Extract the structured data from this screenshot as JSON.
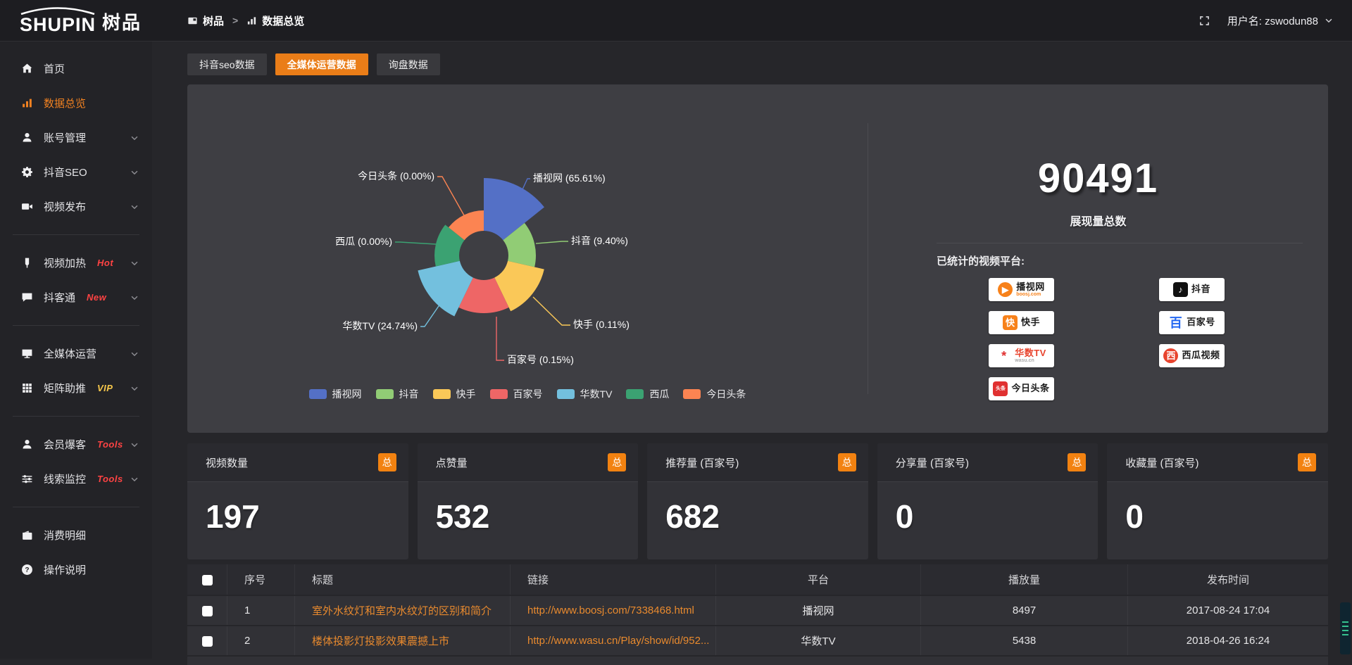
{
  "colors": {
    "accent": "#ea7d18",
    "active_text": "#f08121",
    "link": "#e98a2e",
    "badge_bg": "#f28211",
    "hot_badge": "#ff4343",
    "vip_badge": "#f7c84b",
    "panel_bg": "#3e3e43"
  },
  "topbar": {
    "logo_main": "SHUPIN",
    "logo_sub": "树品",
    "breadcrumb_root": "树品",
    "breadcrumb_sep": ">",
    "breadcrumb_current": "数据总览",
    "username": "用户名: zswodun88"
  },
  "sidebar": {
    "items": [
      {
        "label": "首页",
        "icon": "home"
      },
      {
        "label": "数据总览",
        "icon": "chart",
        "active": true
      },
      {
        "label": "账号管理",
        "icon": "user",
        "chevron": true
      },
      {
        "label": "抖音SEO",
        "icon": "gear",
        "chevron": true
      },
      {
        "label": "视频发布",
        "icon": "video",
        "chevron": true
      },
      {
        "divider": true
      },
      {
        "label": "视频加热",
        "icon": "heat",
        "badge": "Hot",
        "badge_color": "#ff4343",
        "chevron": true
      },
      {
        "label": "抖客通",
        "icon": "chat",
        "badge": "New",
        "badge_color": "#ff4343",
        "chevron": true
      },
      {
        "divider": true
      },
      {
        "label": "全媒体运营",
        "icon": "monitor",
        "chevron": true
      },
      {
        "label": "矩阵助推",
        "icon": "grid",
        "badge": "VIP",
        "badge_color": "#f7c84b",
        "chevron": true
      },
      {
        "divider": true
      },
      {
        "label": "会员爆客",
        "icon": "user",
        "badge": "Tools",
        "badge_color": "#ff4343",
        "chevron": true
      },
      {
        "label": "线索监控",
        "icon": "sliders",
        "badge": "Tools",
        "badge_color": "#ff4343",
        "chevron": true
      },
      {
        "divider": true
      },
      {
        "label": "消费明细",
        "icon": "wallet"
      },
      {
        "label": "操作说明",
        "icon": "help"
      }
    ]
  },
  "tabs": [
    {
      "label": "抖音seo数据"
    },
    {
      "label": "全媒体运营数据",
      "active": true
    },
    {
      "label": "询盘数据"
    }
  ],
  "chart_data": {
    "type": "pie",
    "variant": "nightingale-rose",
    "unit": "%",
    "legend_position": "bottom",
    "label_format": "{name} ({value}%)",
    "items": [
      {
        "name": "播视网",
        "value": 65.61,
        "color": "#5470c6"
      },
      {
        "name": "抖音",
        "value": 9.4,
        "color": "#91cc75"
      },
      {
        "name": "快手",
        "value": 0.11,
        "color": "#fac858"
      },
      {
        "name": "百家号",
        "value": 0.15,
        "color": "#ee6666"
      },
      {
        "name": "华数TV",
        "value": 24.74,
        "color": "#73c0de"
      },
      {
        "name": "西瓜",
        "value": 0.0,
        "color": "#3ba272"
      },
      {
        "name": "今日头条",
        "value": 0.0,
        "color": "#fc8452"
      }
    ]
  },
  "summary": {
    "total_value": "90491",
    "total_caption": "展现量总数",
    "platforms_title": "已统计的视频平台:",
    "platforms_left": [
      {
        "name": "播视网",
        "sub": "boosj.com",
        "icon": "boosj-logo",
        "glyph": "▶",
        "glyph_bg": "#f7811a",
        "glyph_fg": "#ffffff",
        "round": true,
        "sub_color": "#f7811a"
      },
      {
        "name": "快手",
        "icon": "kuaishou-logo",
        "glyph": "快",
        "glyph_bg": "#f7811a",
        "glyph_fg": "#ffffff"
      },
      {
        "name": "华数TV",
        "sub": "wasu.cn",
        "icon": "wasu-logo",
        "glyph": "*",
        "glyph_bg": "#ffffff",
        "glyph_fg": "#e03131",
        "big": true,
        "name_color": "#e8442e",
        "sub_color": "#aaaaaa"
      },
      {
        "name": "今日头条",
        "icon": "toutiao-logo",
        "glyph": "头条",
        "glyph_bg": "#e03131",
        "glyph_fg": "#ffffff",
        "small": true
      }
    ],
    "platforms_right": [
      {
        "name": "抖音",
        "icon": "douyin-logo",
        "glyph": "♪",
        "glyph_bg": "#111111",
        "glyph_fg": "#ffffff"
      },
      {
        "name": "百家号",
        "icon": "baijiahao-logo",
        "glyph": "百",
        "glyph_bg": "#ffffff",
        "glyph_fg": "#2468f2",
        "big": true
      },
      {
        "name": "西瓜视频",
        "icon": "xigua-logo",
        "glyph": "西",
        "glyph_bg": "#e8442e",
        "glyph_fg": "#ffffff",
        "round": true
      }
    ]
  },
  "stat_cards": [
    {
      "title": "视频数量",
      "badge": "总",
      "value": "197"
    },
    {
      "title": "点赞量",
      "badge": "总",
      "value": "532"
    },
    {
      "title": "推荐量 (百家号)",
      "badge": "总",
      "value": "682"
    },
    {
      "title": "分享量 (百家号)",
      "badge": "总",
      "value": "0"
    },
    {
      "title": "收藏量 (百家号)",
      "badge": "总",
      "value": "0"
    }
  ],
  "table": {
    "columns": [
      "序号",
      "标题",
      "链接",
      "平台",
      "播放量",
      "发布时间"
    ],
    "rows": [
      {
        "no": "1",
        "title": "室外水纹灯和室内水纹灯的区别和简介",
        "link": "http://www.boosj.com/7338468.html",
        "platform": "播视网",
        "plays": "8497",
        "time": "2017-08-24 17:04"
      },
      {
        "no": "2",
        "title": "楼体投影灯投影效果震撼上市",
        "link": "http://www.wasu.cn/Play/show/id/952...",
        "platform": "华数TV",
        "plays": "5438",
        "time": "2018-04-26 16:24"
      }
    ]
  }
}
